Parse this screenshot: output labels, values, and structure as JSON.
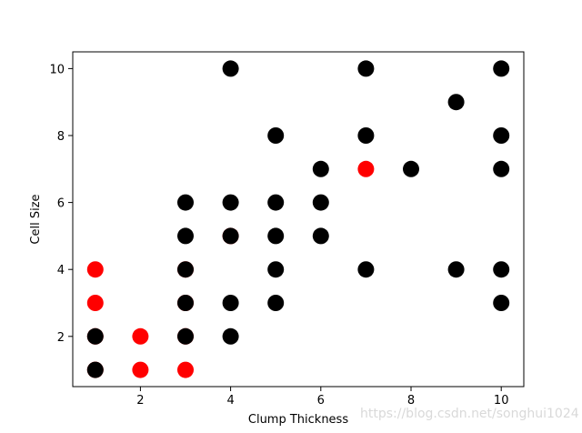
{
  "chart_data": {
    "type": "scatter",
    "title": "",
    "xlabel": "Clump Thickness",
    "ylabel": "Cell Size",
    "xlim": [
      0.5,
      10.5
    ],
    "ylim": [
      0.5,
      10.5
    ],
    "xticks": [
      2,
      4,
      6,
      8,
      10
    ],
    "yticks": [
      2,
      4,
      6,
      8,
      10
    ],
    "grid": false,
    "colors": {
      "series_a": "#ff0000",
      "series_b": "#000000"
    },
    "series": [
      {
        "color": "#ff0000",
        "points": [
          [
            1,
            1
          ],
          [
            1,
            2
          ],
          [
            1,
            3
          ],
          [
            1,
            4
          ],
          [
            2,
            1
          ],
          [
            2,
            2
          ],
          [
            3,
            1
          ],
          [
            3,
            2
          ],
          [
            3,
            3
          ],
          [
            3,
            4
          ],
          [
            4,
            5
          ],
          [
            7,
            7
          ]
        ]
      },
      {
        "color": "#000000",
        "points": [
          [
            1,
            1
          ],
          [
            1,
            2
          ],
          [
            3,
            2
          ],
          [
            3,
            3
          ],
          [
            3,
            4
          ],
          [
            3,
            5
          ],
          [
            3,
            6
          ],
          [
            4,
            2
          ],
          [
            4,
            3
          ],
          [
            4,
            5
          ],
          [
            4,
            6
          ],
          [
            4,
            10
          ],
          [
            5,
            3
          ],
          [
            5,
            4
          ],
          [
            5,
            5
          ],
          [
            5,
            6
          ],
          [
            5,
            8
          ],
          [
            6,
            5
          ],
          [
            6,
            6
          ],
          [
            6,
            7
          ],
          [
            7,
            4
          ],
          [
            7,
            8
          ],
          [
            7,
            10
          ],
          [
            8,
            7
          ],
          [
            9,
            4
          ],
          [
            9,
            9
          ],
          [
            10,
            3
          ],
          [
            10,
            4
          ],
          [
            10,
            7
          ],
          [
            10,
            8
          ],
          [
            10,
            10
          ]
        ]
      }
    ]
  },
  "watermark": "https://blog.csdn.net/songhui1024"
}
